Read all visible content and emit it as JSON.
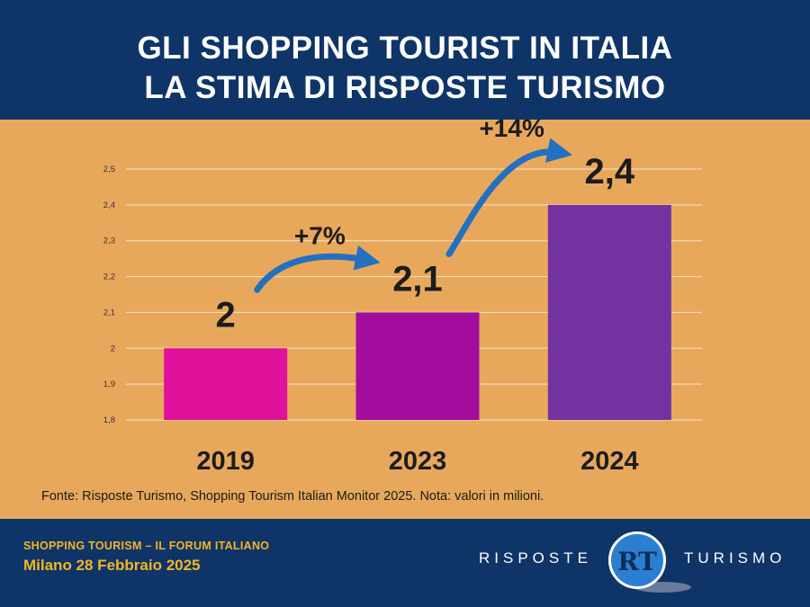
{
  "header": {
    "title_line1": "GLI SHOPPING TOURIST IN ITALIA",
    "title_line2": "LA STIMA DI RISPOSTE TURISMO"
  },
  "chart_data": {
    "type": "bar",
    "categories": [
      "2019",
      "2023",
      "2024"
    ],
    "values": [
      2.0,
      2.1,
      2.4
    ],
    "data_labels": [
      "2",
      "2,1",
      "2,4"
    ],
    "ylim": [
      1.8,
      2.5
    ],
    "yticks": [
      1.8,
      1.9,
      2.0,
      2.1,
      2.2,
      2.3,
      2.4,
      2.5
    ],
    "ytick_labels": [
      "1,8",
      "1,9",
      "2",
      "2,1",
      "2,2",
      "2,3",
      "2,4",
      "2,5"
    ],
    "grid": true,
    "bar_colors": [
      "#e0119a",
      "#a10b9e",
      "#7431a1"
    ],
    "growth_annotations": [
      {
        "label": "+7%",
        "from": "2019",
        "to": "2023"
      },
      {
        "label": "+14%",
        "from": "2023",
        "to": "2024"
      }
    ],
    "arrow_color": "#2470c0",
    "title": "",
    "xlabel": "",
    "ylabel": ""
  },
  "note": "Fonte: Risposte Turismo, Shopping Tourism Italian Monitor 2025. Nota: valori in milioni.",
  "footer": {
    "forum": "SHOPPING TOURISM – IL FORUM ITALIANO",
    "date": "Milano 28 Febbraio 2025",
    "brand_left": "RISPOSTE",
    "brand_right": "TURISMO",
    "logo_mark": "RT"
  },
  "colors": {
    "navy": "#0e3468",
    "background": "#e8a85c",
    "accent_yellow": "#f4b624"
  }
}
